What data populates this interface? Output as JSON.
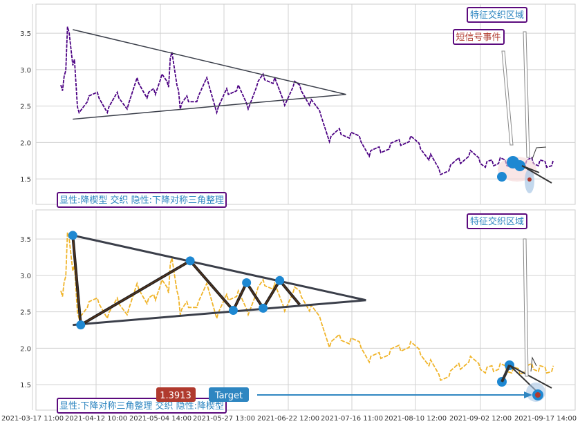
{
  "chart_data": [
    {
      "type": "line",
      "panel": "top",
      "x_ticks": [
        "2021-03-17 11:00",
        "2021-04-12 10:00",
        "2021-05-04 14:00",
        "2021-05-27 13:00",
        "2021-06-22 12:00",
        "2021-07-16 11:00",
        "2021-08-10 12:00",
        "2021-09-02 12:00",
        "2021-09-17 14:00"
      ],
      "y_ticks": [
        "1.5",
        "2.0",
        "2.5",
        "3.0",
        "3.5"
      ],
      "ylim": [
        1.15,
        3.9
      ],
      "grid": true,
      "series": [
        {
          "color": "#4b0082",
          "x": [
            0,
            5,
            10,
            18,
            25,
            40,
            55,
            70,
            85,
            100,
            115,
            130,
            140,
            150,
            160,
            165,
            175,
            180,
            190,
            205,
            220,
            235,
            250,
            265,
            280,
            295,
            305,
            320,
            335,
            350,
            360,
            375,
            390,
            405,
            420,
            435,
            450,
            465,
            480,
            495,
            510,
            525,
            540,
            555,
            570,
            585,
            600,
            615,
            630,
            640,
            650,
            660,
            670,
            680,
            690,
            700,
            710,
            720,
            730,
            740
          ],
          "y": [
            2.75,
            2.95,
            3.55,
            3.1,
            2.45,
            2.6,
            2.65,
            2.45,
            2.65,
            2.5,
            2.85,
            2.65,
            2.7,
            2.9,
            2.8,
            3.2,
            2.75,
            2.5,
            2.6,
            2.6,
            2.85,
            2.45,
            2.7,
            2.75,
            2.5,
            2.8,
            2.9,
            2.85,
            2.55,
            2.8,
            2.75,
            2.55,
            2.4,
            2.05,
            2.15,
            2.1,
            2.05,
            1.85,
            1.9,
            1.95,
            2.0,
            2.05,
            1.95,
            1.8,
            1.6,
            1.65,
            1.75,
            1.85,
            1.75,
            1.7,
            1.72,
            1.75,
            1.72,
            1.7,
            1.68,
            1.72,
            1.75,
            1.72,
            1.7,
            1.72
          ]
        }
      ],
      "overlays": {
        "triangle_upper": [
          [
            18,
            3.55
          ],
          [
            430,
            2.66
          ]
        ],
        "triangle_lower": [
          [
            18,
            2.32
          ],
          [
            430,
            2.66
          ]
        ]
      },
      "annotations": [
        {
          "text": "特征交织区域",
          "color": "#2e86c1",
          "border": "#5b0a7d"
        },
        {
          "text": "短信号事件",
          "color": "#b03a2e",
          "border": "#5b0a7d"
        },
        {
          "text": "显性:降楔型 交织 隐性:下降对称三角整理",
          "color": "#2e86c1",
          "border": "#5b0a7d"
        }
      ]
    },
    {
      "type": "line",
      "panel": "bottom",
      "x_ticks": [
        "2021-03-17 11:00",
        "2021-04-12 10:00",
        "2021-05-04 14:00",
        "2021-05-27 13:00",
        "2021-06-22 12:00",
        "2021-07-16 11:00",
        "2021-08-10 12:00",
        "2021-09-02 12:00",
        "2021-09-17 14:00"
      ],
      "y_ticks": [
        "1.5",
        "2.0",
        "2.5",
        "3.0",
        "3.5"
      ],
      "ylim": [
        1.15,
        3.9
      ],
      "grid": true,
      "series": [
        {
          "color": "#f0b429",
          "x": [
            0,
            5,
            10,
            18,
            25,
            40,
            55,
            70,
            85,
            100,
            115,
            130,
            140,
            150,
            160,
            165,
            175,
            180,
            190,
            205,
            220,
            235,
            250,
            265,
            280,
            295,
            305,
            320,
            335,
            350,
            360,
            375,
            390,
            405,
            420,
            435,
            450,
            465,
            480,
            495,
            510,
            525,
            540,
            555,
            570,
            585,
            600,
            615,
            630,
            640,
            650,
            660,
            670,
            680,
            690,
            700,
            710,
            720,
            730,
            740
          ],
          "y": [
            2.75,
            2.95,
            3.55,
            3.1,
            2.45,
            2.6,
            2.65,
            2.45,
            2.65,
            2.5,
            2.85,
            2.65,
            2.7,
            2.9,
            2.8,
            3.2,
            2.75,
            2.5,
            2.6,
            2.6,
            2.85,
            2.45,
            2.7,
            2.75,
            2.5,
            2.8,
            2.9,
            2.85,
            2.55,
            2.8,
            2.75,
            2.55,
            2.4,
            2.05,
            2.15,
            2.1,
            2.05,
            1.85,
            1.9,
            1.95,
            2.0,
            2.05,
            1.95,
            1.8,
            1.6,
            1.65,
            1.75,
            1.85,
            1.75,
            1.7,
            1.72,
            1.75,
            1.72,
            1.7,
            1.68,
            1.72,
            1.75,
            1.72,
            1.7,
            1.72
          ]
        }
      ],
      "pivots": [
        [
          18,
          3.55
        ],
        [
          30,
          2.32
        ],
        [
          195,
          3.2
        ],
        [
          260,
          2.52
        ],
        [
          280,
          2.9
        ],
        [
          305,
          2.55
        ],
        [
          330,
          2.93
        ],
        [
          360,
          2.6
        ]
      ],
      "overlays": {
        "triangle_upper": [
          [
            18,
            3.55
          ],
          [
            460,
            2.66
          ]
        ],
        "triangle_lower": [
          [
            18,
            2.32
          ],
          [
            460,
            2.66
          ]
        ]
      },
      "annotations": [
        {
          "text": "特征交织区域",
          "color": "#2e86c1",
          "border": "#5b0a7d"
        },
        {
          "text": "显性:下降对称三角整理 交织 隐性:降楔型",
          "color": "#2e86c1",
          "border": "#5b0a7d"
        },
        {
          "text": "1.3913",
          "color": "#ffffff",
          "bg": "#b03a2e"
        },
        {
          "text": "Target",
          "color": "#ffffff",
          "bg": "#2e86c1"
        }
      ]
    }
  ]
}
